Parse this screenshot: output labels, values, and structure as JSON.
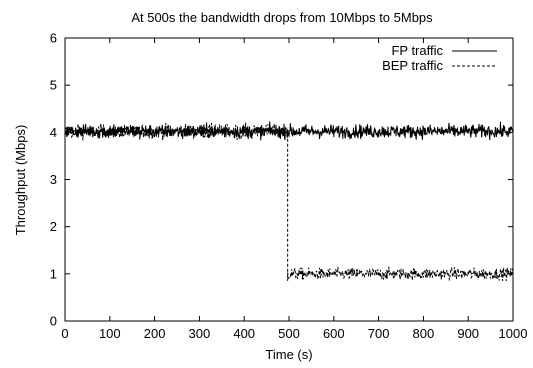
{
  "chart_data": {
    "type": "line",
    "title": "At 500s the bandwidth drops from 10Mbps to 5Mbps",
    "xlabel": "Time (s)",
    "ylabel": "Throughput (Mbps)",
    "xlim": [
      0,
      1000
    ],
    "ylim": [
      0,
      6
    ],
    "xticks": [
      0,
      100,
      200,
      300,
      400,
      500,
      600,
      700,
      800,
      900,
      1000
    ],
    "yticks": [
      0,
      1,
      2,
      3,
      4,
      5,
      6
    ],
    "grid": false,
    "legend_position": "top-right",
    "series": [
      {
        "name": "FP traffic",
        "style": "solid",
        "color": "#000000",
        "segments": [
          {
            "x_start": 0,
            "x_end": 1000,
            "mean": 4.02,
            "noise": 0.12
          }
        ]
      },
      {
        "name": "BEP traffic",
        "style": "dashed",
        "color": "#000000",
        "segments": [
          {
            "x_start": 0,
            "x_end": 497,
            "mean": 4.02,
            "noise": 0.12
          },
          {
            "x_start": 497,
            "x_end": 1000,
            "mean": 1.0,
            "noise": 0.1
          }
        ],
        "transition": {
          "x": 497,
          "from": 3.85,
          "to": 0.85
        }
      }
    ]
  }
}
